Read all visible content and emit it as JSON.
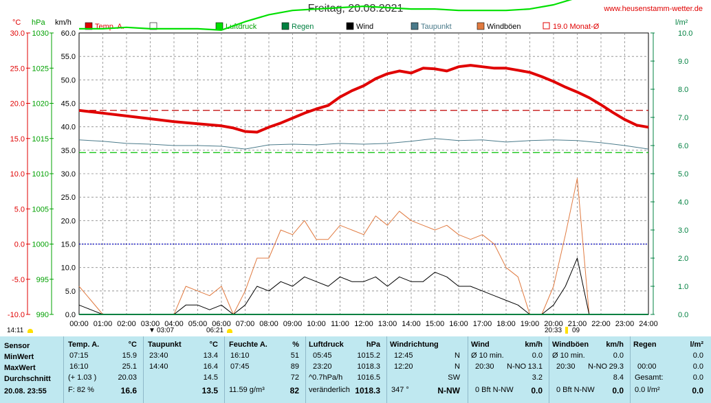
{
  "header": {
    "title": "Freitag, 20.08.2021",
    "site": "www.heusenstamm-wetter.de"
  },
  "axes": {
    "unit_temp": "°C",
    "unit_hpa": "hPa",
    "unit_kmh": "km/h",
    "unit_rain": "l/m²",
    "temp_ticks": [
      "30.0",
      "25.0",
      "20.0",
      "15.0",
      "10.0",
      "5.0",
      "0.0",
      "-5.0",
      "-10.0"
    ],
    "hpa_ticks": [
      "1030",
      "1025",
      "1020",
      "1015",
      "1010",
      "1005",
      "1000",
      "995",
      "990"
    ],
    "kmh_ticks": [
      "60.0",
      "55.0",
      "50.0",
      "45.0",
      "40.0",
      "35.0",
      "30.0",
      "25.0",
      "20.0",
      "15.0",
      "10.0",
      "5.0",
      "0.0"
    ],
    "rain_ticks": [
      "10.0",
      "9.0",
      "8.0",
      "7.0",
      "6.0",
      "5.0",
      "4.0",
      "3.0",
      "2.0",
      "1.0",
      "0.0"
    ],
    "x_ticks": [
      "00:00",
      "01:00",
      "02:00",
      "03:00",
      "04:00",
      "05:00",
      "06:00",
      "07:00",
      "08:00",
      "09:00",
      "10:00",
      "11:00",
      "12:00",
      "13:00",
      "14:00",
      "15:00",
      "16:00",
      "17:00",
      "18:00",
      "19:00",
      "20:00",
      "21:00",
      "22:00",
      "23:00",
      "24:00"
    ]
  },
  "legend": [
    {
      "label": "Temp. A.",
      "color": "#e00000"
    },
    {
      "label": "",
      "color": "#ffffff"
    },
    {
      "label": "Luftdruck",
      "color": "#00e000"
    },
    {
      "label": "Regen",
      "color": "#008040"
    },
    {
      "label": "Wind",
      "color": "#000000"
    },
    {
      "label": "Taupunkt",
      "color": "#4a7a8a"
    },
    {
      "label": "Windböen",
      "color": "#e07a40"
    },
    {
      "label": "19.0 Monat-Ø",
      "color": "#e00000"
    }
  ],
  "event_labels": {
    "left": "14:11",
    "sunrise_icon": "03:07",
    "sunrise": "06:21",
    "sunset": "20:33",
    "moon": "09"
  },
  "chart_data": {
    "type": "line",
    "title": "Freitag, 20.08.2021",
    "x_unit": "hours",
    "temp_range": [
      -10,
      30
    ],
    "kmh_range": [
      0,
      60
    ],
    "rain_range": [
      0,
      10
    ],
    "monthly_avg_temp": 19.0,
    "dewpoint_ref_line_temp": 13.0,
    "wind_ref_line_kmh": 15.0,
    "series": [
      {
        "name": "Temp. A.",
        "axis": "temp",
        "color": "#e00000",
        "x": [
          0,
          1,
          2,
          3,
          4,
          5,
          6,
          6.5,
          7,
          7.5,
          8,
          8.5,
          9,
          9.5,
          10,
          10.5,
          11,
          11.5,
          12,
          12.5,
          13,
          13.5,
          14,
          14.5,
          15,
          15.5,
          16,
          16.5,
          17,
          17.5,
          18,
          18.5,
          19,
          19.5,
          20,
          20.5,
          21,
          21.5,
          22,
          22.5,
          23,
          23.5,
          24
        ],
        "y": [
          19.0,
          18.6,
          18.2,
          17.8,
          17.4,
          17.1,
          16.8,
          16.5,
          16.0,
          15.9,
          16.6,
          17.2,
          17.9,
          18.6,
          19.2,
          19.7,
          20.9,
          21.8,
          22.5,
          23.5,
          24.2,
          24.6,
          24.3,
          25.0,
          24.9,
          24.6,
          25.2,
          25.4,
          25.2,
          25.0,
          25.0,
          24.7,
          24.4,
          23.8,
          23.1,
          22.3,
          21.6,
          20.8,
          19.8,
          18.7,
          17.7,
          16.9,
          16.6
        ]
      },
      {
        "name": "Luftdruck",
        "axis": "hpa",
        "color": "#00e000",
        "x": [
          0,
          1,
          2,
          3,
          4,
          5,
          6,
          7,
          8,
          9,
          10,
          11,
          12,
          13,
          14,
          15,
          16,
          17,
          18,
          19,
          20,
          21,
          22,
          23,
          24
        ],
        "y": [
          1015.3,
          1015.3,
          1015.4,
          1015.3,
          1015.3,
          1015.3,
          1015.2,
          1015.8,
          1016.3,
          1016.6,
          1016.7,
          1016.8,
          1016.9,
          1016.8,
          1016.7,
          1016.7,
          1016.6,
          1016.6,
          1016.6,
          1016.7,
          1017.0,
          1017.5,
          1017.9,
          1018.1,
          1018.2
        ]
      },
      {
        "name": "Taupunkt",
        "axis": "temp",
        "color": "#4a7a8a",
        "x": [
          0,
          1,
          2,
          3,
          4,
          5,
          6,
          7,
          8,
          9,
          10,
          11,
          12,
          13,
          14,
          15,
          16,
          17,
          18,
          19,
          20,
          21,
          22,
          23,
          24
        ],
        "y": [
          14.8,
          14.6,
          14.3,
          14.2,
          14.0,
          14.0,
          13.9,
          13.5,
          14.1,
          14.2,
          14.1,
          14.3,
          14.2,
          14.3,
          14.6,
          15.0,
          14.7,
          14.8,
          14.5,
          14.7,
          14.8,
          14.7,
          14.4,
          14.0,
          13.5
        ]
      },
      {
        "name": "Windböen",
        "axis": "kmh",
        "color": "#e07a40",
        "x": [
          0,
          0.5,
          1,
          1.5,
          2,
          2.5,
          3,
          3.5,
          4,
          4.5,
          5,
          5.5,
          6,
          6.5,
          7,
          7.5,
          8,
          8.5,
          9,
          9.5,
          10,
          10.5,
          11,
          11.5,
          12,
          12.5,
          13,
          13.5,
          14,
          14.5,
          15,
          15.5,
          16,
          16.5,
          17,
          17.5,
          18,
          18.5,
          19,
          19.5,
          20,
          20.5,
          21,
          21.5,
          22,
          22.5,
          23,
          23.5,
          24
        ],
        "y": [
          6,
          3,
          0,
          0,
          0,
          0,
          0,
          0,
          0,
          6,
          5,
          4,
          6,
          0,
          5,
          12,
          12,
          18,
          17,
          20,
          16,
          16,
          19,
          18,
          17,
          21,
          19,
          22,
          20,
          19,
          18,
          19,
          17,
          16,
          17,
          15,
          10,
          8,
          0,
          0,
          6,
          17,
          29,
          0,
          0,
          0,
          0,
          0,
          0
        ]
      },
      {
        "name": "Wind",
        "axis": "kmh",
        "color": "#000000",
        "x": [
          0,
          0.5,
          1,
          1.5,
          2,
          2.5,
          3,
          3.5,
          4,
          4.5,
          5,
          5.5,
          6,
          6.5,
          7,
          7.5,
          8,
          8.5,
          9,
          9.5,
          10,
          10.5,
          11,
          11.5,
          12,
          12.5,
          13,
          13.5,
          14,
          14.5,
          15,
          15.5,
          16,
          16.5,
          17,
          17.5,
          18,
          18.5,
          19,
          19.5,
          20,
          20.5,
          21,
          21.5,
          22,
          22.5,
          23,
          23.5,
          24
        ],
        "y": [
          2,
          1,
          0,
          0,
          0,
          0,
          0,
          0,
          0,
          2,
          2,
          1,
          2,
          0,
          2,
          6,
          5,
          7,
          6,
          8,
          7,
          6,
          8,
          7,
          7,
          8,
          6,
          8,
          7,
          7,
          9,
          8,
          6,
          6,
          5,
          4,
          3,
          2,
          0,
          0,
          2,
          6,
          12,
          0,
          0,
          0,
          0,
          0,
          0
        ]
      },
      {
        "name": "Regen",
        "axis": "rain",
        "color": "#008040",
        "x": [
          0,
          24
        ],
        "y": [
          0,
          0
        ]
      }
    ]
  },
  "stats": {
    "date": "20.08. 23:55",
    "sensor": {
      "header": "Sensor",
      "min": "MinWert",
      "max": "MaxWert",
      "avg": "Durchschnitt"
    },
    "temp": {
      "header": "Temp. A.",
      "unit": "°C",
      "min_time": "07:15",
      "min": "15.9",
      "max_time": "16:10",
      "max": "25.1",
      "avg_diff": "(+ 1.03 )",
      "avg": "20.03",
      "feel": "F: 82 %",
      "current": "16.6"
    },
    "dew": {
      "header": "Taupunkt",
      "unit": "°C",
      "min_time": "23:40",
      "min": "13.4",
      "max_time": "14:40",
      "max": "16.4",
      "avg": "14.5",
      "current": "13.5"
    },
    "hum": {
      "header": "Feuchte A.",
      "unit": "%",
      "min_time": "16:10",
      "min": "51",
      "max_time": "07:45",
      "max": "89",
      "avg": "72",
      "abs": "11.59 g/m³",
      "current": "82"
    },
    "press": {
      "header": "Luftdruck",
      "unit": "hPa",
      "min_time": "05:45",
      "min": "1015.2",
      "max_time": "23:20",
      "max": "1018.3",
      "trend": "^0.7hPa/h",
      "avg": "1016.5",
      "change": "veränderlich",
      "current": "1018.3"
    },
    "dir": {
      "header": "Windrichtung",
      "t1": "12:45",
      "d1": "N",
      "t2": "12:20",
      "d2": "N",
      "avg": "SW",
      "deg": "347 °",
      "current": "N-NW"
    },
    "wind": {
      "header": "Wind",
      "unit": "km/h",
      "min_label": "Ø 10 min.",
      "min": "0.0",
      "max_time": "20:30",
      "max_dir": "N-NO",
      "max": "13.1",
      "avg": "3.2",
      "bft": "0 Bft N-NW",
      "current": "0.0"
    },
    "gust": {
      "header": "Windböen",
      "unit": "km/h",
      "min_label": "Ø 10 min.",
      "min": "0.0",
      "max_time": "20:30",
      "max_dir": "N-NO",
      "max": "29.3",
      "avg": "8.4",
      "bft": "0 Bft N-NW",
      "current": "0.0"
    },
    "rain": {
      "header": "Regen",
      "unit": "l/m²",
      "t1": "00:00",
      "v1": "0.0",
      "total_label": "Gesamt:",
      "total": "0.0",
      "max": "0.0",
      "current_label": "0.0 l/m²",
      "current": "0.0"
    }
  }
}
